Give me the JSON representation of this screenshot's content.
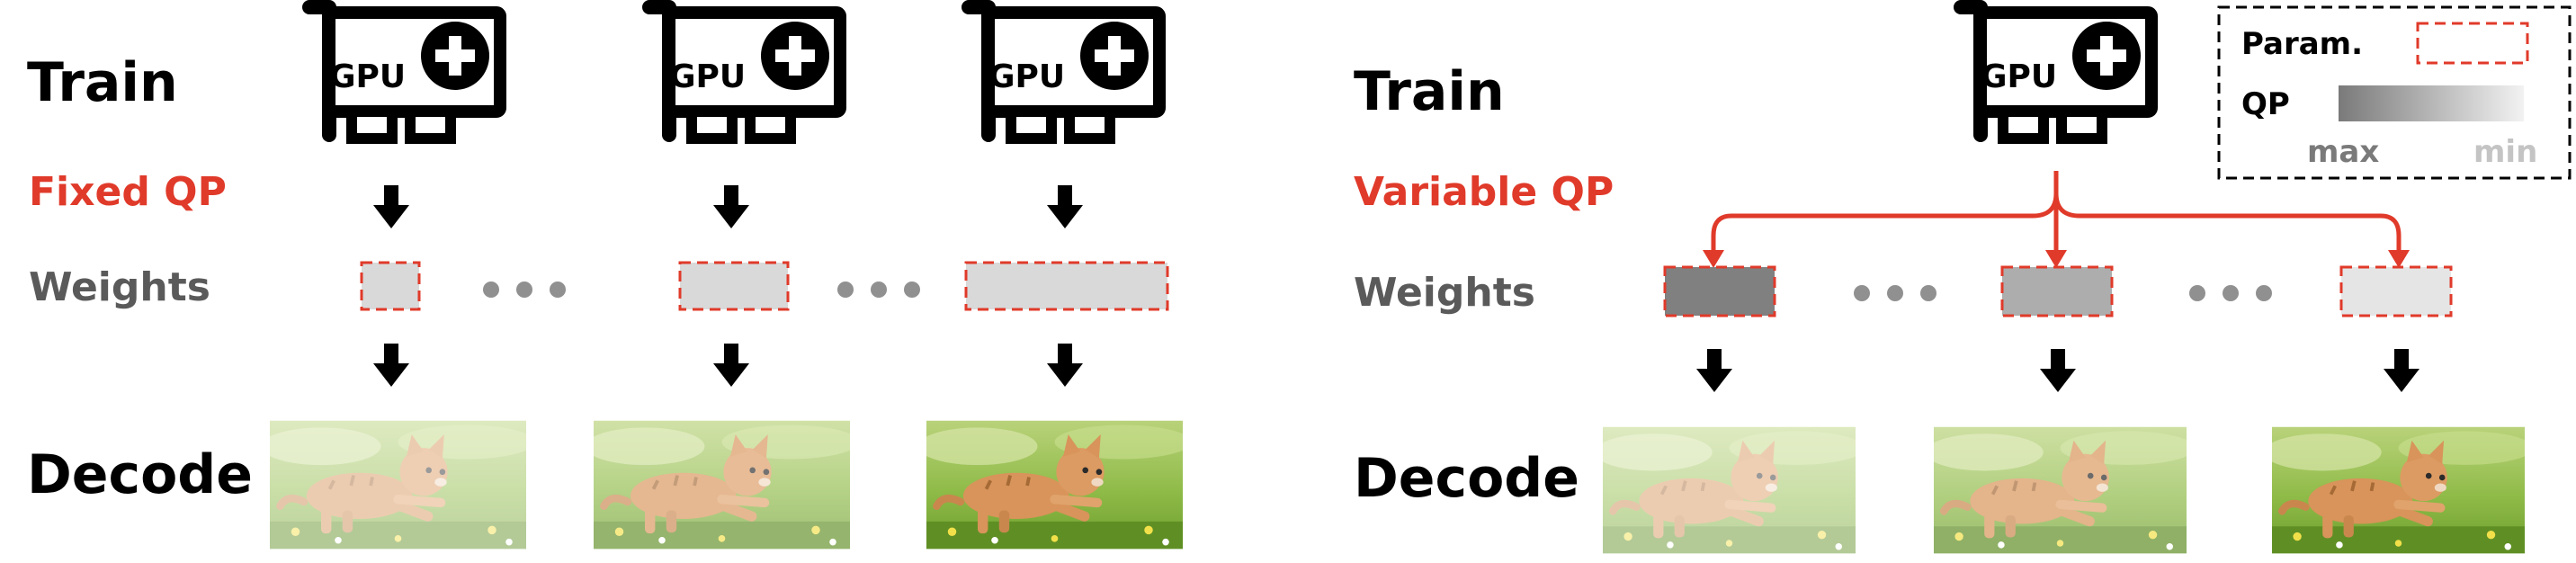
{
  "colors": {
    "accent_red": "#e03a2a",
    "label_gray": "#5a5a5a",
    "dots_gray": "#909090",
    "weight_fill_fixed": "#d9d9d9",
    "qp_max_gray": "#808080",
    "qp_min_gray": "#f0f0f0",
    "grass_green": "#7fae3a",
    "kitten_orange": "#d8945a"
  },
  "icons": {
    "gpu": "gpu-card-icon",
    "plus": "plus-circle-icon",
    "arrow": "down-arrow-icon",
    "kitten": "kitten-photo"
  },
  "left_panel": {
    "train_label": "Train",
    "qp_label": "Fixed QP",
    "weights_label": "Weights",
    "decode_label": "Decode",
    "gpu_text": "GPU",
    "gpu_count": 3,
    "photo_clarity": [
      0.3,
      0.55,
      1.0
    ]
  },
  "right_panel": {
    "train_label": "Train",
    "qp_label": "Variable QP",
    "weights_label": "Weights",
    "decode_label": "Decode",
    "gpu_text": "GPU",
    "photo_clarity": [
      0.3,
      0.6,
      1.0
    ],
    "weight_qp_levels": [
      1.0,
      0.6,
      0.1
    ]
  },
  "legend": {
    "param_label": "Param.",
    "qp_label": "QP",
    "max_label": "max",
    "min_label": "min"
  }
}
